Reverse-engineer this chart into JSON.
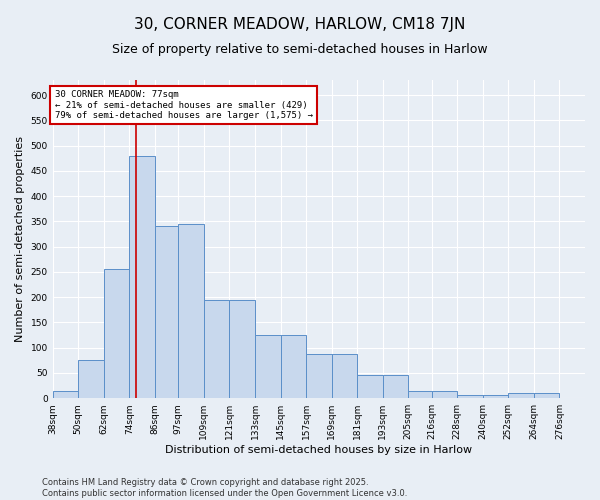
{
  "title": "30, CORNER MEADOW, HARLOW, CM18 7JN",
  "subtitle": "Size of property relative to semi-detached houses in Harlow",
  "xlabel": "Distribution of semi-detached houses by size in Harlow",
  "ylabel": "Number of semi-detached properties",
  "footnote": "Contains HM Land Registry data © Crown copyright and database right 2025.\nContains public sector information licensed under the Open Government Licence v3.0.",
  "bar_left_edges": [
    38,
    50,
    62,
    74,
    86,
    97,
    109,
    121,
    133,
    145,
    157,
    169,
    181,
    193,
    205,
    216,
    228,
    240,
    252,
    264
  ],
  "bar_widths": [
    12,
    12,
    12,
    12,
    11,
    12,
    12,
    12,
    12,
    12,
    12,
    12,
    12,
    12,
    11,
    12,
    12,
    12,
    12,
    12
  ],
  "bar_heights": [
    15,
    75,
    255,
    480,
    340,
    345,
    195,
    195,
    125,
    125,
    87,
    87,
    45,
    45,
    15,
    15,
    7,
    7,
    10,
    10
  ],
  "tick_labels": [
    "38sqm",
    "50sqm",
    "62sqm",
    "74sqm",
    "86sqm",
    "97sqm",
    "109sqm",
    "121sqm",
    "133sqm",
    "145sqm",
    "157sqm",
    "169sqm",
    "181sqm",
    "193sqm",
    "205sqm",
    "216sqm",
    "228sqm",
    "240sqm",
    "252sqm",
    "264sqm",
    "276sqm"
  ],
  "bar_color": "#c8d8ed",
  "bar_edge_color": "#5b8fc9",
  "red_line_x": 77,
  "annotation_title": "30 CORNER MEADOW: 77sqm",
  "annotation_line1": "← 21% of semi-detached houses are smaller (429)",
  "annotation_line2": "79% of semi-detached houses are larger (1,575) →",
  "annotation_box_color": "#ffffff",
  "annotation_box_edge": "#cc0000",
  "red_line_color": "#cc0000",
  "ylim": [
    0,
    630
  ],
  "yticks": [
    0,
    50,
    100,
    150,
    200,
    250,
    300,
    350,
    400,
    450,
    500,
    550,
    600
  ],
  "bg_color": "#e8eef5",
  "plot_bg_color": "#e8eef5",
  "grid_color": "#ffffff",
  "title_fontsize": 11,
  "subtitle_fontsize": 9,
  "axis_label_fontsize": 8,
  "tick_fontsize": 6.5,
  "footnote_fontsize": 6
}
